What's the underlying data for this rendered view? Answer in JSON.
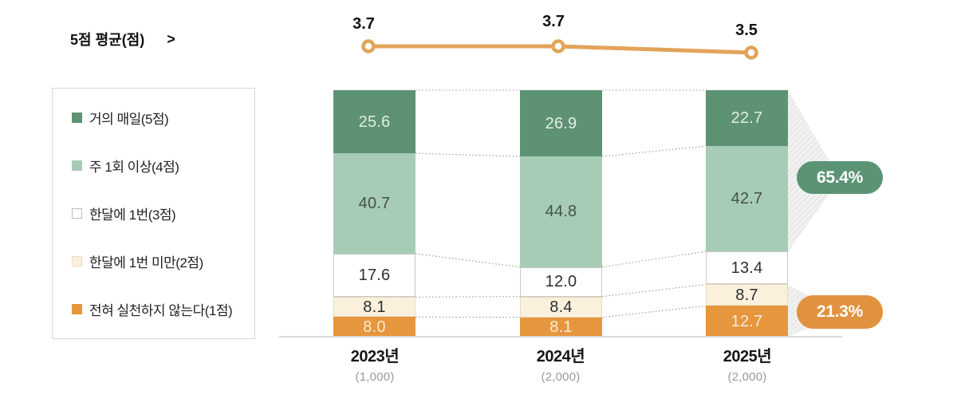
{
  "title": {
    "label": "5점 평균(점)",
    "arrow": ">"
  },
  "legend": {
    "items": [
      {
        "label": "거의 매일(5점)"
      },
      {
        "label": "주 1회 이상(4점)"
      },
      {
        "label": "한달에 1번(3점)"
      },
      {
        "label": "한달에 1번 미만(2점)"
      },
      {
        "label": "전혀 실천하지 않는다(1점)"
      }
    ]
  },
  "chart_data": {
    "type": "bar",
    "subtype": "100%-stacked-column-with-average-line",
    "unit": "%",
    "ylim": [
      0,
      100
    ],
    "categories": [
      "2023년",
      "2024년",
      "2025년"
    ],
    "category_counts": [
      "(1,000)",
      "(2,000)",
      "(2,000)"
    ],
    "series": [
      {
        "name": "거의 매일(5점)",
        "values": [
          25.6,
          26.9,
          22.7
        ],
        "color": "#5d9273",
        "label_color": "#e3ede5"
      },
      {
        "name": "주 1회 이상(4점)",
        "values": [
          40.7,
          44.8,
          42.7
        ],
        "color": "#a7ccb6",
        "label_color": "#44514a"
      },
      {
        "name": "한달에 1번(3점)",
        "values": [
          17.6,
          12.0,
          13.4
        ],
        "color": "#ffffff",
        "label_color": "#2f2f2f",
        "border": "solid"
      },
      {
        "name": "한달에 1번 미만(2점)",
        "values": [
          8.1,
          8.4,
          8.7
        ],
        "color": "#faf0dc",
        "label_color": "#2f2f2f",
        "border": "dotted"
      },
      {
        "name": "전혀 실천하지 않는다(1점)",
        "values": [
          8.0,
          8.1,
          12.7
        ],
        "color": "#e6963d",
        "label_color": "#f8ecd9"
      }
    ],
    "line_series": {
      "name": "5점 평균(점)",
      "values": [
        "3.7",
        "3.7",
        "3.5"
      ],
      "color": "#e2a45a"
    },
    "badges": [
      {
        "label": "65.4%",
        "color": "#5b9475",
        "covers": "거의 매일 + 주 1회 이상"
      },
      {
        "label": "21.3%",
        "color": "#e0923e",
        "covers": "한달에 1번 미만 + 전혀 실천하지 않는다"
      }
    ]
  }
}
